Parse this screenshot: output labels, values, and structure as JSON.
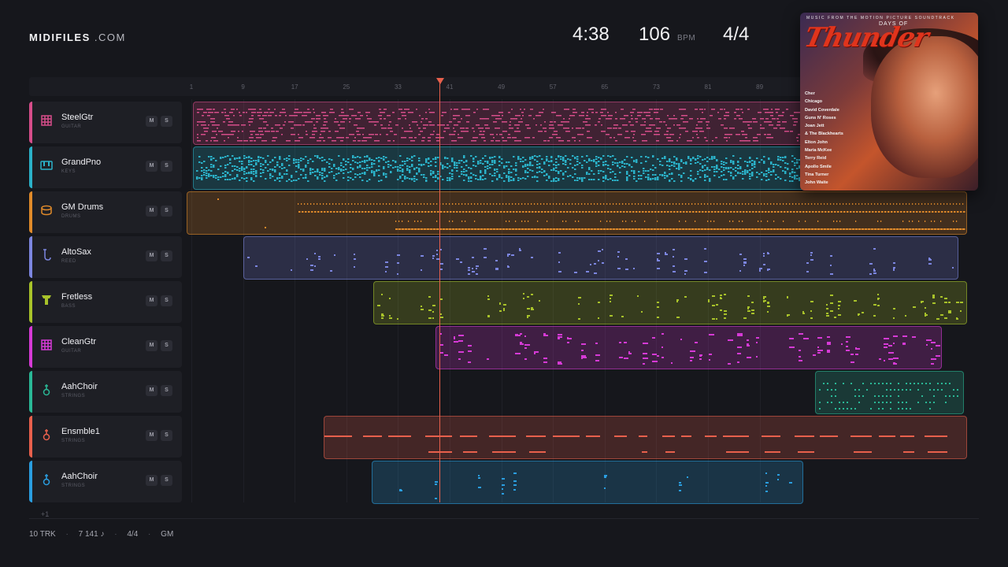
{
  "brand": {
    "name": "MIDIFILES",
    "suffix": ".COM"
  },
  "header": {
    "duration": "4:38",
    "bpm": "106",
    "bpm_unit": "BPM",
    "time_signature": "4/4"
  },
  "ruler": {
    "bars": [
      "1",
      "9",
      "17",
      "25",
      "33",
      "41",
      "49",
      "57",
      "65",
      "73",
      "81",
      "89"
    ]
  },
  "playhead": {
    "bar": 37
  },
  "tracks": [
    {
      "name": "SteelGtr",
      "type": "GUITAR",
      "icon": "guitar-grid-icon",
      "color": "#d64d8a",
      "mute": "M",
      "solo": "S"
    },
    {
      "name": "GrandPno",
      "type": "KEYS",
      "icon": "piano-keys-icon",
      "color": "#2bb1c8",
      "mute": "M",
      "solo": "S"
    },
    {
      "name": "GM Drums",
      "type": "DRUMS",
      "icon": "drum-icon",
      "color": "#e08a2a",
      "mute": "M",
      "solo": "S"
    },
    {
      "name": "AltoSax",
      "type": "REED",
      "icon": "saxophone-icon",
      "color": "#7c86e0",
      "mute": "M",
      "solo": "S"
    },
    {
      "name": "Fretless",
      "type": "BASS",
      "icon": "bass-icon",
      "color": "#a8c22a",
      "mute": "M",
      "solo": "S"
    },
    {
      "name": "CleanGtr",
      "type": "GUITAR",
      "icon": "guitar-grid-icon",
      "color": "#d63ad6",
      "mute": "M",
      "solo": "S"
    },
    {
      "name": "AahChoir",
      "type": "STRINGS",
      "icon": "violin-icon",
      "color": "#2ab896",
      "mute": "M",
      "solo": "S"
    },
    {
      "name": "Ensmble1",
      "type": "STRINGS",
      "icon": "violin-icon",
      "color": "#e8604c",
      "mute": "M",
      "solo": "S"
    },
    {
      "name": "AahChoir",
      "type": "STRINGS",
      "icon": "violin-icon",
      "color": "#2a9ee0",
      "mute": "M",
      "solo": "S"
    }
  ],
  "more_tracks": "+1",
  "footer": {
    "tracks": "10 TRK",
    "notes": "7 141 ♪",
    "signature": "4/4",
    "standard": "GM",
    "separator": "·"
  },
  "album": {
    "subtitle": "MUSIC FROM THE MOTION PICTURE SOUNDTRACK",
    "title_small": "DAYS OF",
    "title_big": "Thunder",
    "artists": [
      "Cher",
      "Chicago",
      "David Coverdale",
      "Guns N' Roses",
      "Joan Jett",
      "& The Blackhearts",
      "Elton John",
      "Maria McKee",
      "Terry Reid",
      "Apollo Smile",
      "Tina Turner",
      "John Waite"
    ]
  }
}
